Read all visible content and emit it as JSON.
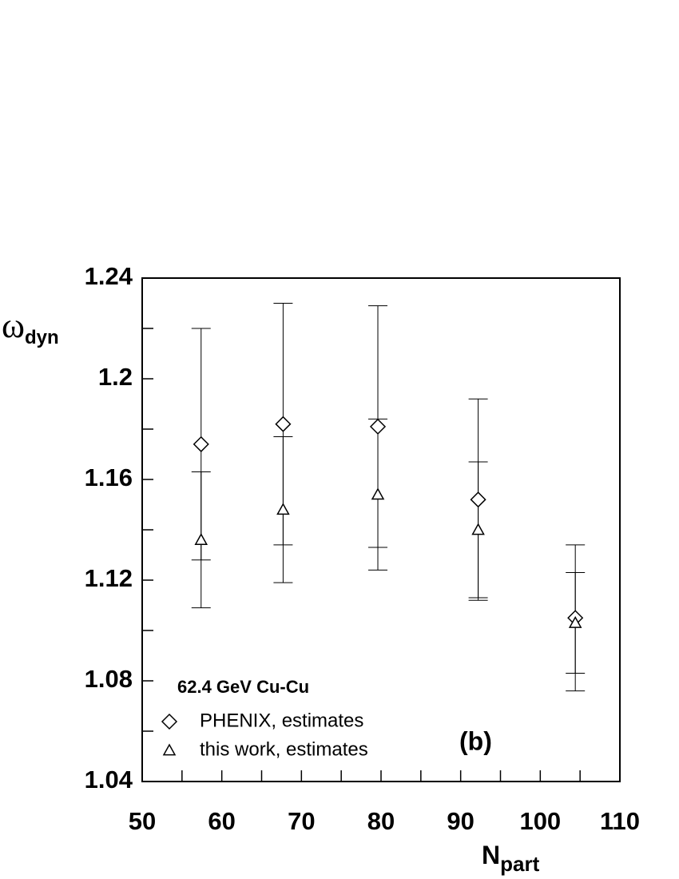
{
  "chart_data": {
    "type": "scatter",
    "ylabel": "ω",
    "ylabel_sub": "dyn",
    "xlabel": "N",
    "xlabel_sub": "part",
    "legend_title": "62.4 GeV Cu-Cu",
    "annotation": "(b)",
    "legend_position": "lower left",
    "series": [
      {
        "name": "PHENIX, estimates",
        "marker": "diamond",
        "color": "#000000",
        "x": [
          57.4,
          67.7,
          79.6,
          92.2,
          104.4
        ],
        "values": [
          1.174,
          1.182,
          1.181,
          1.152,
          1.105
        ],
        "errors": [
          0.046,
          0.048,
          0.048,
          0.04,
          0.029
        ]
      },
      {
        "name": "this work, estimates",
        "marker": "triangle",
        "color": "#000000",
        "x": [
          57.4,
          67.7,
          79.6,
          92.2,
          104.4
        ],
        "values": [
          1.136,
          1.148,
          1.154,
          1.14,
          1.103
        ],
        "errors": [
          0.027,
          0.029,
          0.03,
          0.027,
          0.02
        ]
      }
    ],
    "xlim": [
      50,
      110
    ],
    "xticks": [
      50,
      60,
      70,
      80,
      90,
      100,
      110
    ],
    "xminorticks": [
      55,
      65,
      75,
      85,
      95,
      105
    ],
    "ylim": [
      1.04,
      1.24
    ],
    "yticks": [
      1.04,
      1.08,
      1.12,
      1.16,
      1.2,
      1.24
    ],
    "yminorticks": [
      1.06,
      1.1,
      1.14,
      1.18,
      1.22
    ],
    "grid": false
  }
}
